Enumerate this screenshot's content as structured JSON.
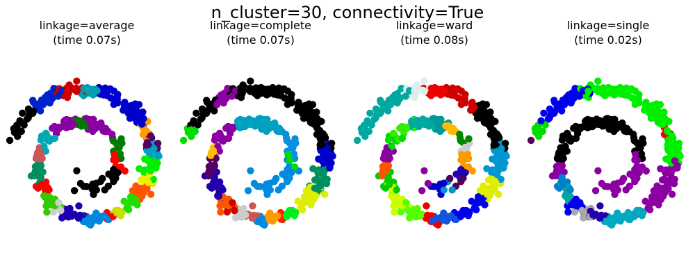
{
  "figure": {
    "suptitle": "n_cluster=30, connectivity=True"
  },
  "chart_data": [
    {
      "type": "scatter",
      "title": "linkage=average",
      "subtitle": "(time 0.07s)",
      "axis": "off",
      "ylim": [
        -17,
        15
      ],
      "xlim": [
        -13.5,
        15.5
      ],
      "clusters": [
        {
          "color": "#000000",
          "ranges": [
            [
              0.45,
              1.95
            ]
          ]
        },
        {
          "color": "#ff0000",
          "ranges": [
            [
              1.95,
              2.05
            ],
            [
              3.13,
              3.2
            ],
            [
              3.62,
              3.66
            ]
          ]
        },
        {
          "color": "#007a00",
          "ranges": [
            [
              2.05,
              2.22
            ],
            [
              2.5,
              2.6
            ]
          ]
        },
        {
          "color": "#8b00a0",
          "ranges": [
            [
              2.22,
              2.5
            ],
            [
              2.6,
              2.75
            ]
          ]
        },
        {
          "color": "#00a8b5",
          "ranges": [
            [
              2.75,
              2.9
            ]
          ]
        },
        {
          "color": "#cc5555",
          "ranges": [
            [
              2.9,
              3.0
            ]
          ]
        },
        {
          "color": "#009060",
          "ranges": [
            [
              3.0,
              3.13
            ]
          ]
        },
        {
          "color": "#33cc00",
          "ranges": [
            [
              3.2,
              3.3
            ]
          ]
        },
        {
          "color": "#cccccc",
          "ranges": [
            [
              3.3,
              3.36
            ]
          ]
        },
        {
          "color": "#1a00b0",
          "ranges": [
            [
              3.36,
              3.46
            ]
          ]
        },
        {
          "color": "#0088dd",
          "ranges": [
            [
              3.46,
              3.62
            ]
          ]
        },
        {
          "color": "#ccdd00",
          "ranges": [
            [
              3.66,
              3.72
            ]
          ]
        },
        {
          "color": "#22dd00",
          "ranges": [
            [
              3.72,
              3.8
            ]
          ]
        },
        {
          "color": "#ff5500",
          "ranges": [
            [
              3.8,
              3.88
            ]
          ]
        },
        {
          "color": "#eeee00",
          "ranges": [
            [
              3.88,
              3.94
            ]
          ]
        },
        {
          "color": "#00ee00",
          "ranges": [
            [
              3.94,
              4.02
            ]
          ]
        },
        {
          "color": "#00a0c0",
          "ranges": [
            [
              4.02,
              4.08
            ]
          ]
        },
        {
          "color": "#550066",
          "ranges": [
            [
              4.08,
              4.14
            ]
          ]
        },
        {
          "color": "#ff9900",
          "ranges": [
            [
              4.14,
              4.2
            ]
          ]
        },
        {
          "color": "#0000cc",
          "ranges": [
            [
              4.2,
              4.45
            ]
          ]
        },
        {
          "color": "#00a0b0",
          "ranges": [
            [
              4.45,
              4.52
            ]
          ]
        },
        {
          "color": "#cc0000",
          "ranges": [
            [
              4.52,
              4.62
            ]
          ]
        },
        {
          "color": "#0022cc",
          "ranges": [
            [
              4.62,
              4.75
            ]
          ]
        }
      ]
    },
    {
      "type": "scatter",
      "title": "linkage=complete",
      "subtitle": "(time 0.07s)",
      "axis": "off",
      "ylim": [
        -17,
        15
      ],
      "xlim": [
        -13.5,
        15.5
      ],
      "clusters": [
        {
          "color": "#008ae0",
          "ranges": [
            [
              0.45,
              2.0
            ]
          ]
        },
        {
          "color": "#00dd00",
          "ranges": [
            [
              2.0,
              2.05
            ],
            [
              4.85,
              4.95
            ]
          ]
        },
        {
          "color": "#0a8fe0",
          "ranges": [
            [
              2.05,
              2.35
            ]
          ]
        },
        {
          "color": "#00a0c0",
          "ranges": [
            [
              2.35,
              2.7
            ]
          ]
        },
        {
          "color": "#8b00a0",
          "ranges": [
            [
              2.7,
              2.9
            ],
            [
              4.62,
              4.72
            ]
          ]
        },
        {
          "color": "#ffbb00",
          "ranges": [
            [
              2.9,
              2.96
            ]
          ]
        },
        {
          "color": "#550066",
          "ranges": [
            [
              2.96,
              3.08
            ]
          ]
        },
        {
          "color": "#2200aa",
          "ranges": [
            [
              3.08,
              3.22
            ]
          ]
        },
        {
          "color": "#ff5500",
          "ranges": [
            [
              3.22,
              3.3
            ]
          ]
        },
        {
          "color": "#cc0000",
          "ranges": [
            [
              3.3,
              3.36
            ]
          ]
        },
        {
          "color": "#cccccc",
          "ranges": [
            [
              3.36,
              3.4
            ]
          ]
        },
        {
          "color": "#cc5555",
          "ranges": [
            [
              3.4,
              3.46
            ]
          ]
        },
        {
          "color": "#0088dd",
          "ranges": [
            [
              3.46,
              3.52
            ]
          ]
        },
        {
          "color": "#ff9900",
          "ranges": [
            [
              3.52,
              3.58
            ]
          ]
        },
        {
          "color": "#ff2200",
          "ranges": [
            [
              3.58,
              3.64
            ]
          ]
        },
        {
          "color": "#00ee22",
          "ranges": [
            [
              3.64,
              3.7
            ]
          ]
        },
        {
          "color": "#ddee00",
          "ranges": [
            [
              3.7,
              3.85
            ]
          ]
        },
        {
          "color": "#009060",
          "ranges": [
            [
              3.85,
              3.98
            ]
          ]
        },
        {
          "color": "#0000cc",
          "ranges": [
            [
              3.98,
              4.08
            ]
          ]
        },
        {
          "color": "#000000",
          "ranges": [
            [
              4.08,
              4.62
            ],
            [
              4.72,
              4.85
            ]
          ]
        }
      ]
    },
    {
      "type": "scatter",
      "title": "linkage=ward",
      "subtitle": "(time 0.08s)",
      "axis": "off",
      "ylim": [
        -17,
        15
      ],
      "xlim": [
        -13.5,
        15.5
      ],
      "clusters": [
        {
          "color": "#ff9900",
          "ranges": [
            [
              0.45,
              0.55
            ],
            [
              1.95,
              2.08
            ]
          ]
        },
        {
          "color": "#00a8a0",
          "ranges": [
            [
              0.55,
              0.7
            ],
            [
              2.5,
              2.68
            ]
          ]
        },
        {
          "color": "#00cc00",
          "ranges": [
            [
              0.7,
              0.85
            ],
            [
              3.08,
              3.18
            ]
          ]
        },
        {
          "color": "#cc5555",
          "ranges": [
            [
              0.85,
              0.95
            ]
          ]
        },
        {
          "color": "#8b00a0",
          "ranges": [
            [
              0.95,
              1.45
            ],
            [
              2.88,
              3.0
            ]
          ]
        },
        {
          "color": "#0000cc",
          "ranges": [
            [
              1.45,
              1.6
            ]
          ]
        },
        {
          "color": "#0096d0",
          "ranges": [
            [
              1.6,
              1.72
            ]
          ]
        },
        {
          "color": "#550055",
          "ranges": [
            [
              1.72,
              1.82
            ]
          ]
        },
        {
          "color": "#2200aa",
          "ranges": [
            [
              1.82,
              1.95
            ]
          ]
        },
        {
          "color": "#cccccc",
          "ranges": [
            [
              2.08,
              2.18
            ]
          ]
        },
        {
          "color": "#008800",
          "ranges": [
            [
              2.18,
              2.3
            ]
          ]
        },
        {
          "color": "#ffbb00",
          "ranges": [
            [
              2.3,
              2.4
            ]
          ]
        },
        {
          "color": "#009999",
          "ranges": [
            [
              2.4,
              2.5
            ]
          ]
        },
        {
          "color": "#33ee00",
          "ranges": [
            [
              2.68,
              2.8
            ]
          ]
        },
        {
          "color": "#00dd00",
          "ranges": [
            [
              2.8,
              2.88
            ]
          ]
        },
        {
          "color": "#ff5500",
          "ranges": [
            [
              3.0,
              3.08
            ]
          ]
        },
        {
          "color": "#ccff00",
          "ranges": [
            [
              3.18,
              3.3
            ]
          ]
        },
        {
          "color": "#55ff00",
          "ranges": [
            [
              3.3,
              3.42
            ]
          ]
        },
        {
          "color": "#ee0000",
          "ranges": [
            [
              3.42,
              3.5
            ]
          ]
        },
        {
          "color": "#1155dd",
          "ranges": [
            [
              3.5,
              3.62
            ]
          ]
        },
        {
          "color": "#0000ee",
          "ranges": [
            [
              3.62,
              3.8
            ]
          ]
        },
        {
          "color": "#ddee00",
          "ranges": [
            [
              3.8,
              3.92
            ]
          ]
        },
        {
          "color": "#0096d0",
          "ranges": [
            [
              3.92,
              4.08
            ]
          ]
        },
        {
          "color": "#000000",
          "ranges": [
            [
              4.08,
              4.3
            ]
          ]
        },
        {
          "color": "#cc0000",
          "ranges": [
            [
              4.3,
              4.45
            ]
          ]
        },
        {
          "color": "#ee0000",
          "ranges": [
            [
              4.45,
              4.55
            ]
          ]
        },
        {
          "color": "#ddeeee",
          "ranges": [
            [
              4.55,
              4.62
            ]
          ]
        },
        {
          "color": "#00a8a0",
          "ranges": [
            [
              4.62,
              4.95
            ]
          ]
        }
      ]
    },
    {
      "type": "scatter",
      "title": "linkage=single",
      "subtitle": "(time 0.02s)",
      "axis": "off",
      "ylim": [
        -17,
        15
      ],
      "xlim": [
        -13.5,
        15.5
      ],
      "clusters": [
        {
          "color": "#8b00a0",
          "ranges": [
            [
              0.45,
              2.05
            ],
            [
              3.7,
              4.0
            ],
            [
              3.0,
              3.1
            ]
          ]
        },
        {
          "color": "#000000",
          "ranges": [
            [
              2.05,
              3.0
            ]
          ]
        },
        {
          "color": "#0080cc",
          "ranges": [
            [
              3.1,
              3.18
            ]
          ]
        },
        {
          "color": "#00a8a0",
          "ranges": [
            [
              3.18,
              3.25
            ]
          ]
        },
        {
          "color": "#0000ee",
          "ranges": [
            [
              3.25,
              3.32
            ]
          ]
        },
        {
          "color": "#aaaaaa",
          "ranges": [
            [
              3.32,
              3.38
            ]
          ]
        },
        {
          "color": "#2200aa",
          "ranges": [
            [
              3.38,
              3.48
            ]
          ]
        },
        {
          "color": "#00a8c0",
          "ranges": [
            [
              3.48,
              3.7
            ]
          ]
        },
        {
          "color": "#00ee00",
          "ranges": [
            [
              4.0,
              4.15
            ],
            [
              4.18,
              4.6
            ]
          ]
        },
        {
          "color": "#ee0000",
          "ranges": [
            [
              4.15,
              4.18
            ]
          ]
        },
        {
          "color": "#0000ee",
          "ranges": [
            [
              4.6,
              4.82
            ]
          ]
        },
        {
          "color": "#00dd00",
          "ranges": [
            [
              4.82,
              4.88
            ]
          ]
        },
        {
          "color": "#550055",
          "ranges": [
            [
              4.88,
              4.95
            ]
          ]
        }
      ]
    }
  ]
}
